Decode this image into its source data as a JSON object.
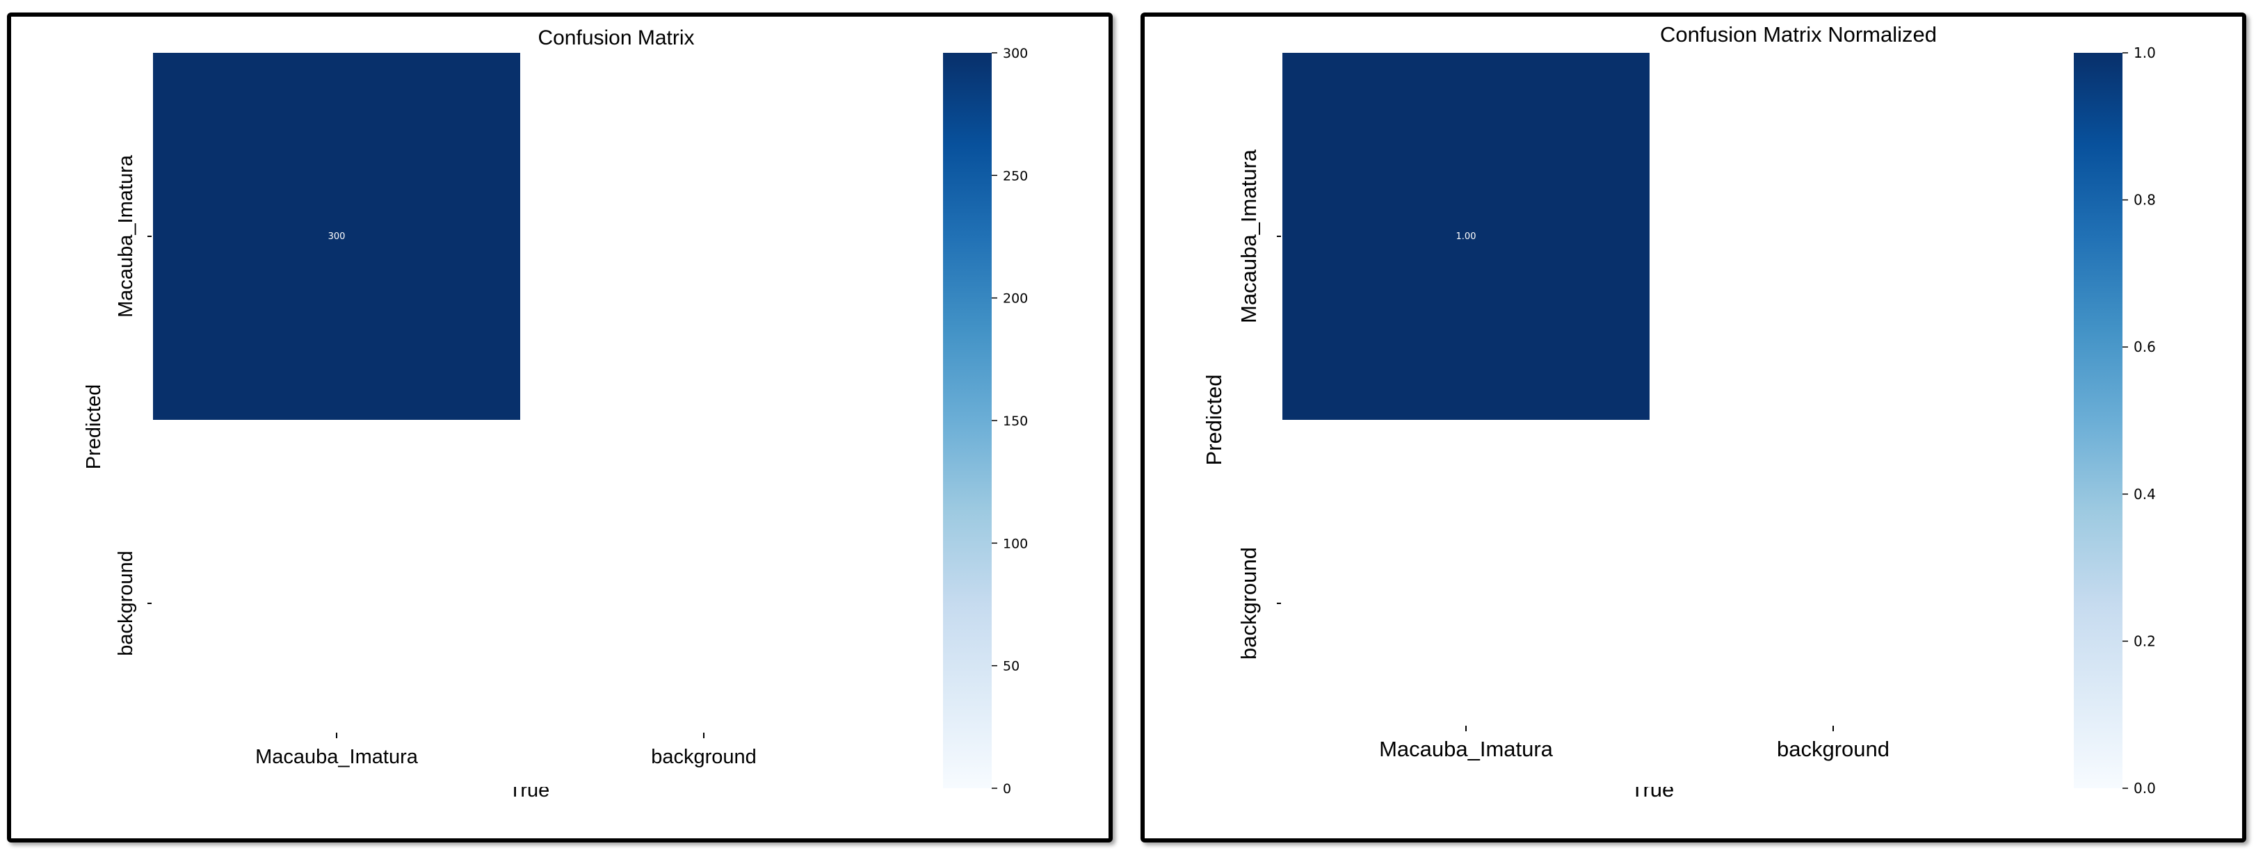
{
  "colors": {
    "dark": "#08306b",
    "text_on_dark": "#ffffff",
    "axis": "#000000"
  },
  "colorbar_stops": [
    "#f7fbff",
    "#deebf7",
    "#c6dbef",
    "#9ecae1",
    "#6baed6",
    "#4292c6",
    "#2171b5",
    "#08519c",
    "#08306b"
  ],
  "chart_data": [
    {
      "type": "heatmap",
      "title": "Confusion Matrix",
      "xlabel": "True",
      "ylabel": "Predicted",
      "x_categories": [
        "Macauba_Imatura",
        "background"
      ],
      "y_categories": [
        "Macauba_Imatura",
        "background"
      ],
      "values": [
        [
          300,
          null
        ],
        [
          null,
          null
        ]
      ],
      "cell_labels": [
        [
          "300",
          ""
        ],
        [
          "",
          ""
        ]
      ],
      "vmin": 0,
      "vmax": 300,
      "colorbar_ticks": [
        0,
        50,
        100,
        150,
        200,
        250,
        300
      ],
      "colorbar_tick_labels": [
        "0",
        "50",
        "100",
        "150",
        "200",
        "250",
        "300"
      ],
      "colormap": "Blues"
    },
    {
      "type": "heatmap",
      "title": "Confusion Matrix Normalized",
      "xlabel": "True",
      "ylabel": "Predicted",
      "x_categories": [
        "Macauba_Imatura",
        "background"
      ],
      "y_categories": [
        "Macauba_Imatura",
        "background"
      ],
      "values": [
        [
          1.0,
          null
        ],
        [
          null,
          null
        ]
      ],
      "cell_labels": [
        [
          "1.00",
          ""
        ],
        [
          "",
          ""
        ]
      ],
      "vmin": 0,
      "vmax": 1.0,
      "colorbar_ticks": [
        0.0,
        0.2,
        0.4,
        0.6,
        0.8,
        1.0
      ],
      "colorbar_tick_labels": [
        "0.0",
        "0.2",
        "0.4",
        "0.6",
        "0.8",
        "1.0"
      ],
      "colormap": "Blues"
    }
  ]
}
